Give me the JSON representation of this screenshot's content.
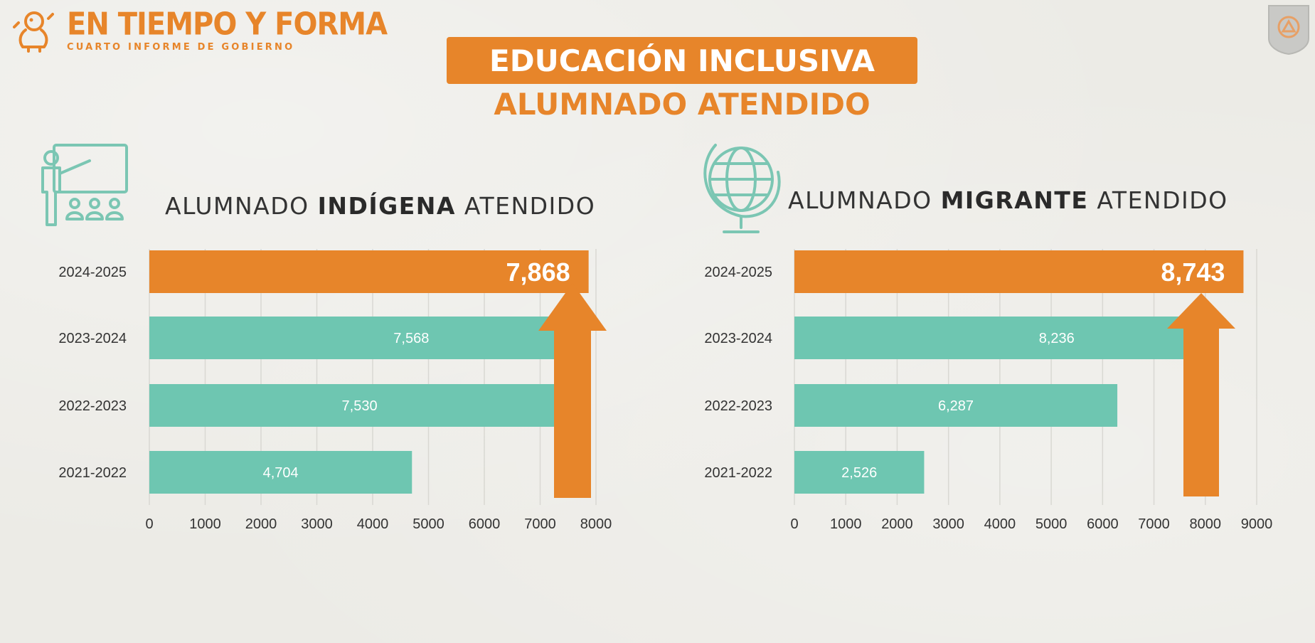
{
  "header": {
    "brand_title": "EN TIEMPO Y FORMA",
    "brand_subtitle": "CUARTO INFORME DE GOBIERNO",
    "banner": "EDUCACIÓN INCLUSIVA",
    "subtitle": "ALUMNADO ATENDIDO"
  },
  "colors": {
    "orange": "#e7852a",
    "teal": "#6ec6b1",
    "icon_teal": "#7bc6b3",
    "text": "#333333"
  },
  "icons": {
    "left": "teacher-with-students-icon",
    "right": "globe-icon",
    "brand": "lion-logo-icon",
    "seal": "state-seal-icon"
  },
  "chart_data": [
    {
      "type": "bar",
      "orientation": "horizontal",
      "title_pre": "ALUMNADO ",
      "title_bold": "INDÍGENA",
      "title_post": " ATENDIDO",
      "categories": [
        "2024-2025",
        "2023-2024",
        "2022-2023",
        "2021-2022"
      ],
      "values": [
        7868,
        7568,
        7530,
        4704
      ],
      "labels": [
        "7,868",
        "7,568",
        "7,530",
        "4,704"
      ],
      "highlight_index": 0,
      "xlim": [
        0,
        8000
      ],
      "xticks": [
        "0",
        "1000",
        "2000",
        "3000",
        "4000",
        "5000",
        "6000",
        "7000",
        "8000"
      ],
      "grid": true
    },
    {
      "type": "bar",
      "orientation": "horizontal",
      "title_pre": "ALUMNADO ",
      "title_bold": "MIGRANTE",
      "title_post": " ATENDIDO",
      "categories": [
        "2024-2025",
        "2023-2024",
        "2022-2023",
        "2021-2022"
      ],
      "values": [
        8743,
        8236,
        6287,
        2526
      ],
      "labels": [
        "8,743",
        "8,236",
        "6,287",
        "2,526"
      ],
      "highlight_index": 0,
      "xlim": [
        0,
        9000
      ],
      "xticks": [
        "0",
        "1000",
        "2000",
        "3000",
        "4000",
        "5000",
        "6000",
        "7000",
        "8000",
        "9000"
      ],
      "grid": true
    }
  ]
}
